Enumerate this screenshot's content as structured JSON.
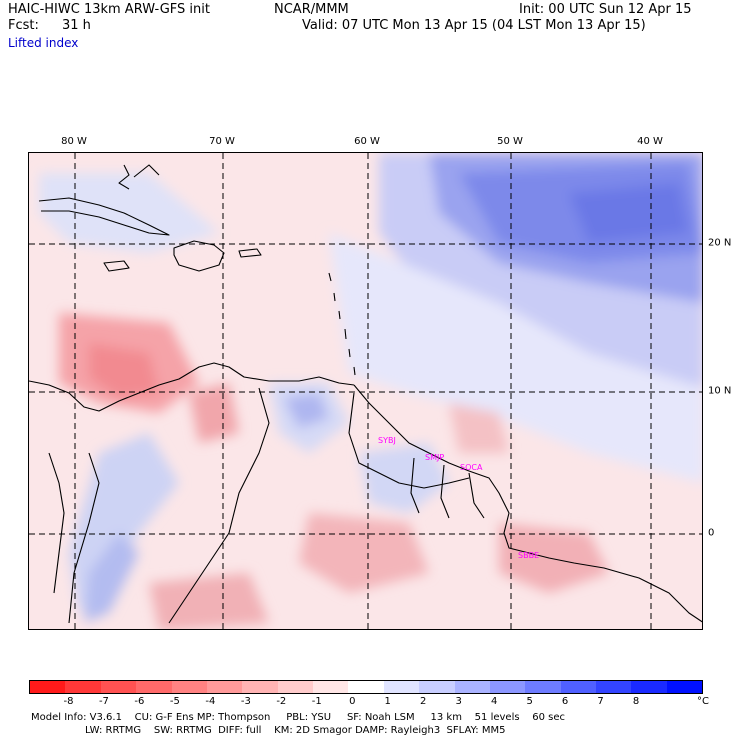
{
  "header": {
    "model_title": "HAIC-HIWC 13km ARW-GFS init",
    "center": "NCAR/MMM",
    "init": "Init: 00 UTC Sun 12 Apr 15",
    "fcst_label": "Fcst:",
    "fcst_value": "31 h",
    "valid": "Valid: 07 UTC Mon 13 Apr 15 (04 LST Mon 13 Apr 15)",
    "field_name": "Lifted index"
  },
  "map": {
    "longitude_labels": [
      "80 W",
      "70 W",
      "60 W",
      "50 W",
      "40 W"
    ],
    "latitude_labels": [
      "20 N",
      "10 N",
      "0"
    ],
    "stations": [
      "SYBJ",
      "SMJP",
      "SOCA",
      "SBBE"
    ],
    "colors": {
      "coast": "#000000",
      "grid": "#000000",
      "station": "#ff00ff"
    }
  },
  "colorbar": {
    "unit": "°C",
    "tick_labels": [
      "-8",
      "-7",
      "-6",
      "-5",
      "-4",
      "-3",
      "-2",
      "-1",
      "0",
      "1",
      "2",
      "3",
      "4",
      "5",
      "6",
      "7",
      "8"
    ],
    "colors": [
      "#ff1a1a",
      "#ff3838",
      "#ff5252",
      "#ff6a6a",
      "#ff8282",
      "#ff9a9a",
      "#ffb4b4",
      "#ffcccc",
      "#ffe6e6",
      "#ffffff",
      "#e0e4ff",
      "#c8ceff",
      "#aab3ff",
      "#8c97ff",
      "#6e7cff",
      "#5060ff",
      "#3344ff",
      "#1a2aff",
      "#0010ff"
    ]
  },
  "footer": {
    "line1": "Model Info: V3.6.1    CU: G-F Ens MP: Thompson     PBL: YSU     SF: Noah LSM     13 km    51 levels    60 sec",
    "line2": "LW: RRTMG    SW: RRTMG  DIFF: full    KM: 2D Smagor DAMP: Rayleigh3  SFLAY: MM5"
  }
}
